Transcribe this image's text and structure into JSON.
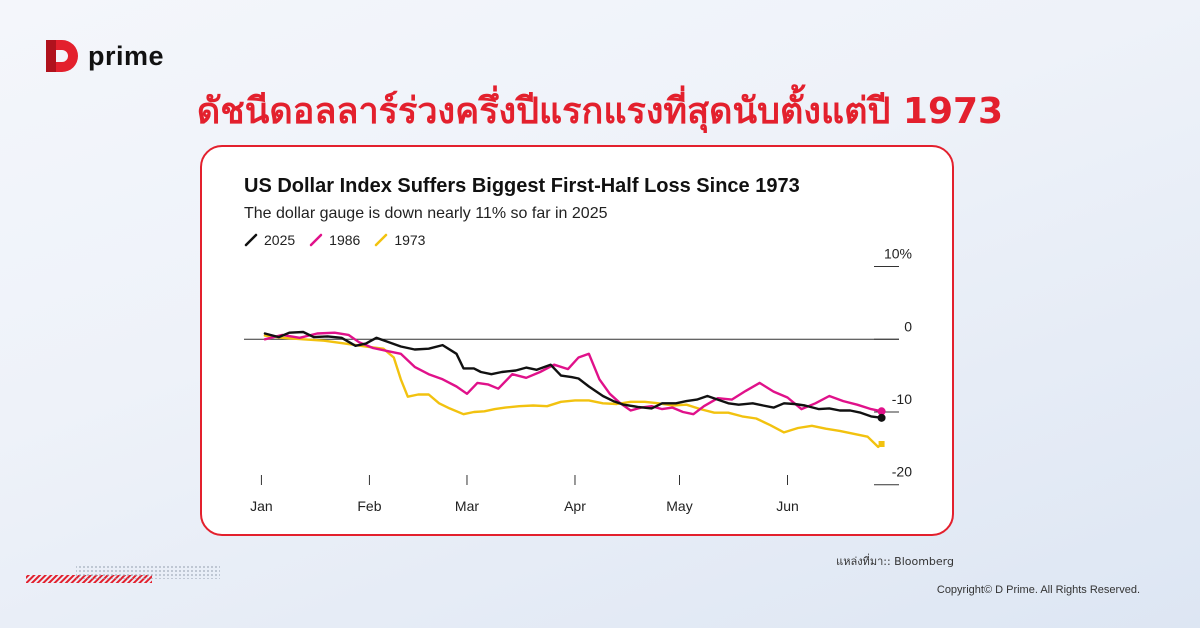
{
  "brand": {
    "logo_text": "prime",
    "colors": {
      "accent": "#e3202d",
      "logo_dark": "#b0121d"
    }
  },
  "headline": "ดัชนีดอลลาร์ร่วงครึ่งปีแรกแรงที่สุดนับตั้งแต่ปี 1973",
  "chart_data": {
    "type": "line",
    "title": "US Dollar Index Suffers Biggest First-Half Loss Since 1973",
    "subtitle": "The dollar gauge is down nearly 11% so far in 2025",
    "xlabel": "",
    "ylabel": "",
    "x_ticks": [
      "Jan",
      "Feb",
      "Mar",
      "Apr",
      "May",
      "Jun"
    ],
    "x_tick_days": [
      0,
      31,
      59,
      90,
      120,
      151
    ],
    "xlim": [
      -5,
      183
    ],
    "y_ticks": [
      {
        "value": 10,
        "label": "10%"
      },
      {
        "value": 0,
        "label": "0"
      },
      {
        "value": -10,
        "label": "-10"
      },
      {
        "value": -20,
        "label": "-20"
      }
    ],
    "ylim": [
      -21,
      12
    ],
    "grid": false,
    "legend_position": "top-left",
    "series": [
      {
        "name": "2025",
        "color": "#111111",
        "x": [
          1,
          5,
          8,
          12,
          15,
          19,
          23,
          27,
          30,
          33,
          36,
          40,
          44,
          48,
          52,
          56,
          58,
          61,
          63,
          66,
          69,
          73,
          76,
          79,
          83,
          86,
          89,
          91,
          94,
          98,
          101,
          104,
          108,
          112,
          115,
          119,
          122,
          125,
          128,
          131,
          134,
          137,
          141,
          144,
          147,
          150,
          153,
          156,
          160,
          163,
          166,
          169,
          172,
          175,
          178
        ],
        "values": [
          0.8,
          0.3,
          0.9,
          1.0,
          0.3,
          0.4,
          0.2,
          -0.9,
          -0.6,
          0.2,
          -0.3,
          -1.0,
          -1.4,
          -1.3,
          -0.8,
          -2.0,
          -4.0,
          -4.0,
          -4.5,
          -4.8,
          -4.5,
          -4.3,
          -3.9,
          -4.2,
          -3.5,
          -5.0,
          -5.2,
          -5.4,
          -6.5,
          -7.8,
          -8.5,
          -9.0,
          -9.3,
          -9.5,
          -8.8,
          -8.8,
          -8.5,
          -8.3,
          -7.8,
          -8.3,
          -8.8,
          -9.0,
          -8.8,
          -9.1,
          -9.4,
          -8.8,
          -8.9,
          -9.1,
          -9.6,
          -9.5,
          -9.8,
          -9.8,
          -10.1,
          -10.6,
          -10.8
        ]
      },
      {
        "name": "1986",
        "color": "#e0118a",
        "x": [
          1,
          6,
          11,
          16,
          21,
          25,
          28,
          32,
          36,
          40,
          44,
          48,
          52,
          56,
          59,
          62,
          65,
          68,
          72,
          76,
          80,
          84,
          88,
          91,
          94,
          97,
          100,
          103,
          106,
          109,
          112,
          115,
          118,
          121,
          124,
          127,
          131,
          135,
          139,
          143,
          147,
          151,
          155,
          159,
          163,
          167,
          171,
          175,
          178
        ],
        "values": [
          0.0,
          0.6,
          0.2,
          0.8,
          0.9,
          0.6,
          -0.4,
          -1.2,
          -1.6,
          -2.0,
          -3.8,
          -4.8,
          -5.5,
          -6.5,
          -7.5,
          -6.0,
          -6.2,
          -6.8,
          -4.8,
          -5.3,
          -4.5,
          -3.5,
          -4.1,
          -2.5,
          -2.0,
          -5.5,
          -7.5,
          -8.8,
          -9.8,
          -9.4,
          -9.2,
          -9.6,
          -9.4,
          -10.0,
          -10.3,
          -9.2,
          -8.1,
          -8.3,
          -7.1,
          -6.0,
          -7.2,
          -8.0,
          -9.6,
          -8.8,
          -7.8,
          -8.5,
          -9.0,
          -9.6,
          -9.9
        ]
      },
      {
        "name": "1973",
        "color": "#f2c20f",
        "x": [
          1,
          6,
          12,
          18,
          24,
          30,
          35,
          38,
          40,
          42,
          45,
          48,
          51,
          54,
          58,
          61,
          64,
          67,
          70,
          74,
          78,
          82,
          86,
          90,
          94,
          98,
          102,
          106,
          110,
          114,
          118,
          122,
          126,
          130,
          134,
          138,
          142,
          146,
          150,
          154,
          158,
          162,
          166,
          170,
          174,
          177,
          178
        ],
        "values": [
          0.5,
          0.2,
          0.0,
          -0.2,
          -0.6,
          -1.0,
          -1.3,
          -2.5,
          -5.5,
          -7.9,
          -7.6,
          -7.6,
          -8.8,
          -9.5,
          -10.3,
          -10.0,
          -9.9,
          -9.6,
          -9.4,
          -9.2,
          -9.1,
          -9.2,
          -8.6,
          -8.4,
          -8.4,
          -8.8,
          -8.9,
          -8.6,
          -8.6,
          -8.8,
          -9.1,
          -9.0,
          -9.6,
          -10.1,
          -10.1,
          -10.6,
          -10.9,
          -11.8,
          -12.8,
          -12.2,
          -11.9,
          -12.3,
          -12.6,
          -13.0,
          -13.4,
          -14.8,
          -14.4
        ]
      }
    ]
  },
  "source_text": "แหล่งที่มา:: Bloomberg",
  "copyright": "Copyright© D Prime. All Rights Reserved."
}
